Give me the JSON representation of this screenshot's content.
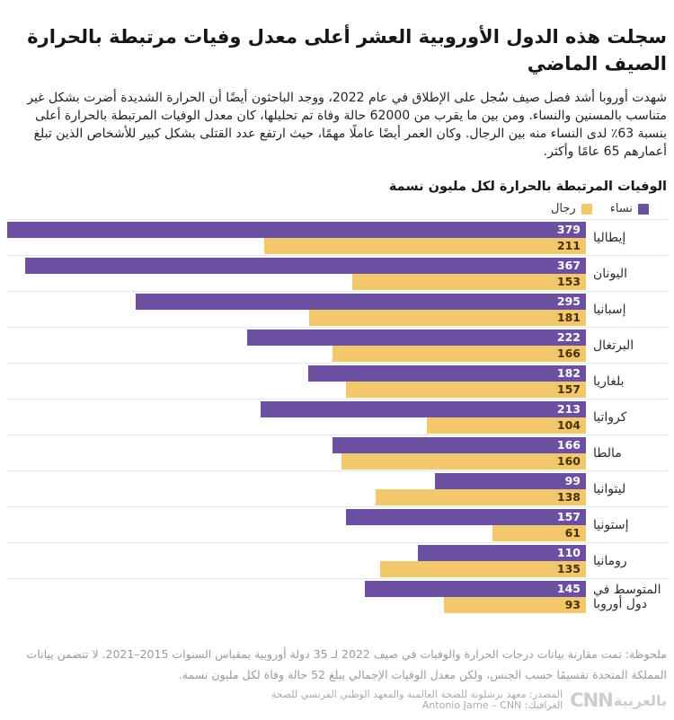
{
  "header": {
    "title": "سجلت هذه الدول الأوروبية العشر أعلى معدل وفيات مرتبطة بالحرارة الصيف الماضي",
    "paragraph": "شهدت أوروبا أشد فصل صيف سُجل على الإطلاق في عام 2022، ووجد الباحثون أيضًا أن الحرارة الشديدة أضرت بشكل غير متناسب بالمسنين والنساء. ومن بين ما يقرب من 62000 حالة وفاة تم تحليلها، كان معدل الوفيات المرتبطة بالحرارة أعلى بنسبة 63٪ لدى النساء منه بين الرجال. وكان العمر أيضًا عاملًا مهمًا، حيث ارتفع عدد القتلى بشكل كبير للأشخاص الذين تبلغ أعمارهم 65 عامًا وأكثر."
  },
  "chart_data": {
    "type": "bar",
    "orientation": "horizontal-rtl",
    "title": "الوفيات المرتبطة بالحرارة لكل مليون نسمة",
    "legend_position": "top-right",
    "grid": "row-separators-only",
    "max_value": 379,
    "categories": [
      "إيطاليا",
      "اليونان",
      "إسبانيا",
      "البرتغال",
      "بلغاريا",
      "كرواتيا",
      "مالطا",
      "ليتوانيا",
      "إستونيا",
      "رومانيا",
      "المتوسط في دول أوروبا"
    ],
    "series": [
      {
        "name": "نساء",
        "color": "#6b4fa1",
        "values": [
          379,
          367,
          295,
          222,
          182,
          213,
          166,
          99,
          157,
          110,
          145
        ]
      },
      {
        "name": "رجال",
        "color": "#f3c76b",
        "values": [
          211,
          153,
          181,
          166,
          157,
          104,
          160,
          138,
          61,
          135,
          93
        ]
      }
    ]
  },
  "footer": {
    "note": "ملحوظة: تمت مقارنة بيانات درجات الحرارة والوفيات في صيف 2022 لـ 35 دولة أوروبية بمقياس السنوات 2015–2021. لا تتضمن بيانات المملكة المتحدة تقسيمًا حسب الجنس، ولكن معدل الوفيات الإجمالي يبلغ 52 حالة وفاة لكل مليون نسمة.",
    "source": "المصدر: معهد برشلونة للصحة العالمية والمعهد الوطني الفرنسي للصحة",
    "credit_label": "الغرافيك:",
    "credit_name": "Antonio Jarne – CNN",
    "logo_arabic": "بالعربية",
    "logo_latin": "CNN"
  }
}
